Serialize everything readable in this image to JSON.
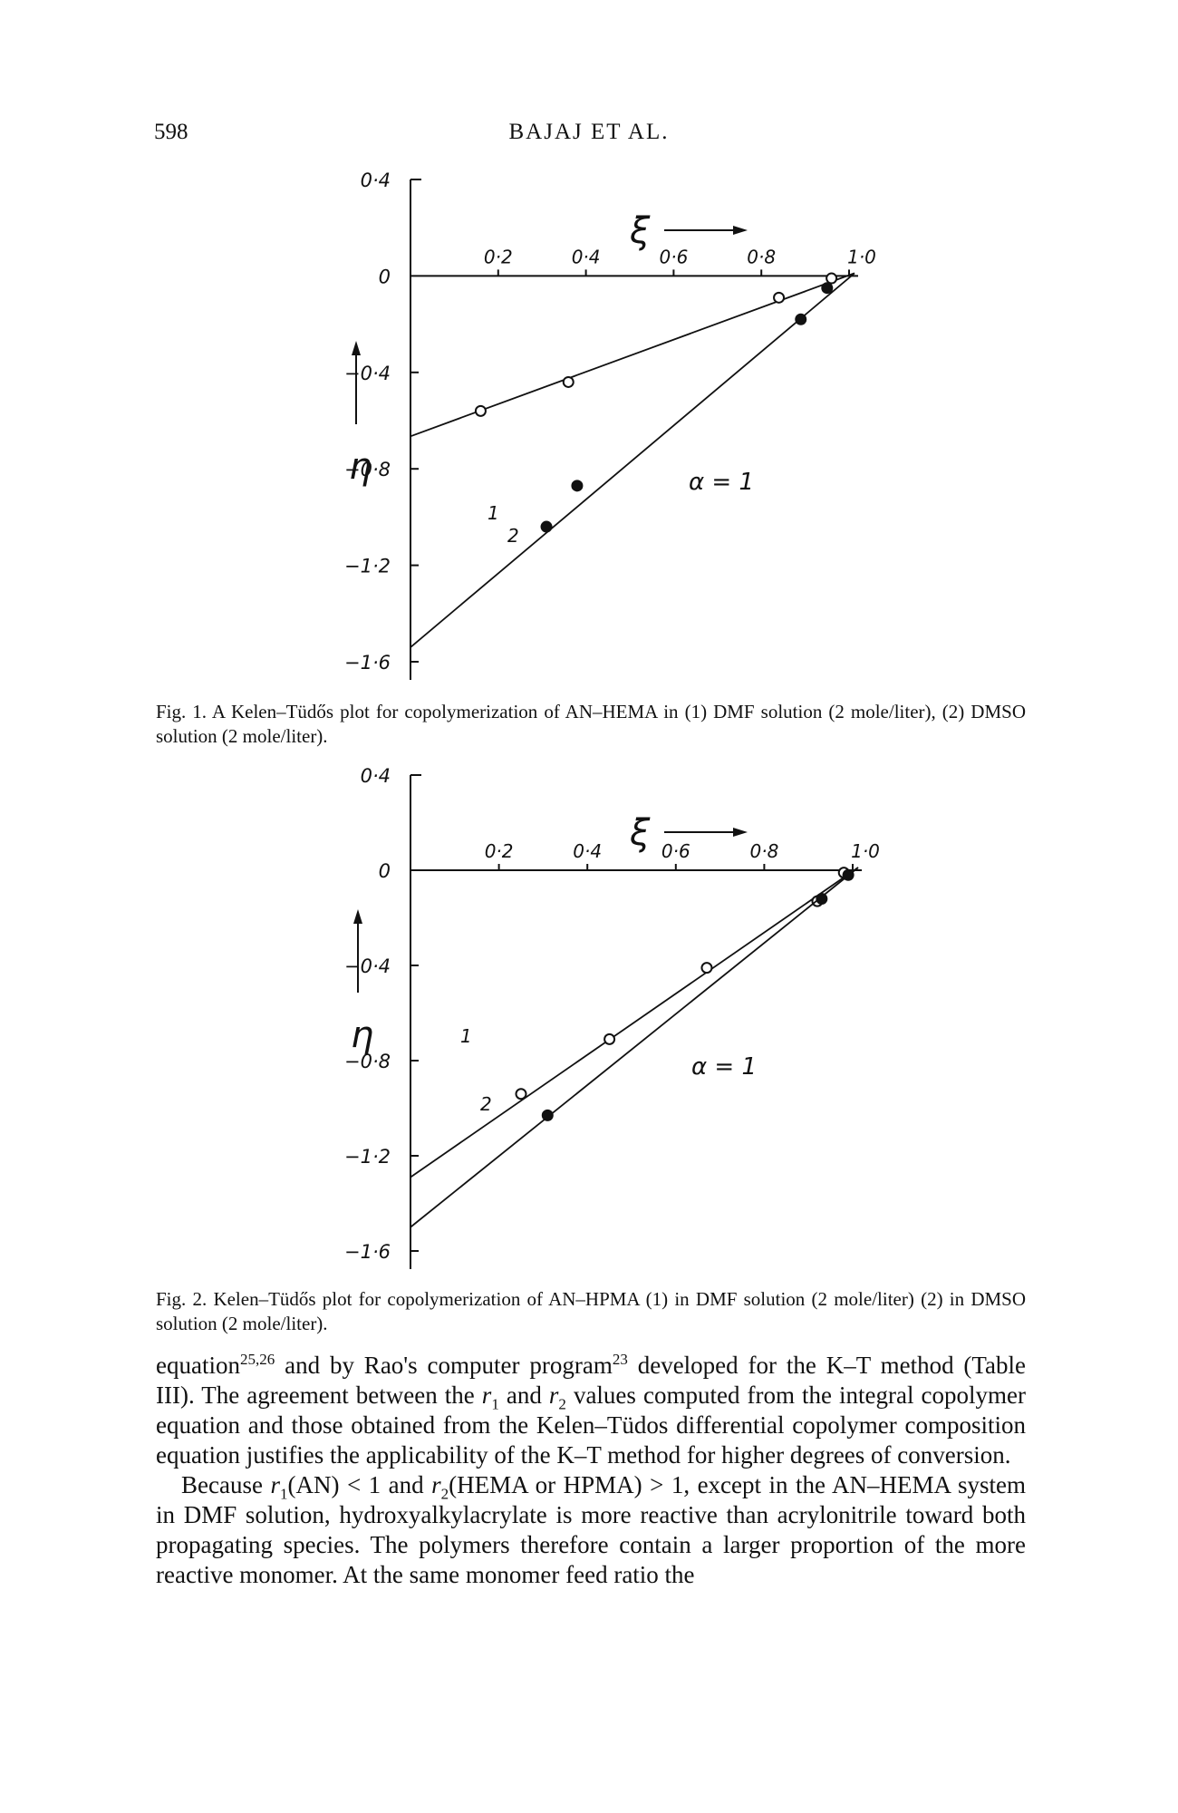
{
  "header": {
    "page_number": "598",
    "running_head": "BAJAJ ET AL."
  },
  "figures": [
    {
      "caption": "Fig. 1. A Kelen–Tüdős plot for copolymerization of AN–HEMA in (1) DMF solution (2 mole/liter), (2) DMSO solution (2 mole/liter).",
      "xlabel": "ξ",
      "ylabel": "η",
      "annotation": "α = 1"
    },
    {
      "caption": "Fig. 2. Kelen–Tüdős plot for copolymerization of AN–HPMA (1) in DMF solution (2 mole/liter) (2) in DMSO solution (2 mole/liter).",
      "xlabel": "ξ",
      "ylabel": "η",
      "annotation": "α = 1"
    }
  ],
  "chart_data": [
    {
      "type": "scatter",
      "title": "",
      "xlabel": "ξ",
      "ylabel": "η",
      "xlim": [
        0,
        1.0
      ],
      "ylim": [
        -1.6,
        0.4
      ],
      "x_ticks": [
        0.2,
        0.4,
        0.6,
        0.8,
        1.0
      ],
      "y_ticks": [
        0.4,
        0,
        -0.4,
        -0.8,
        -1.2,
        -1.6
      ],
      "x_tick_labels": [
        "0·2",
        "0·4",
        "0·6",
        "0·8",
        "1·0"
      ],
      "y_tick_labels": [
        "0·4",
        "0",
        "−0·4",
        "−0·8",
        "−1·2",
        "−1·6"
      ],
      "annotation": "α = 1",
      "series": [
        {
          "name": "1",
          "marker": "open",
          "points": [
            [
              0.16,
              -0.56
            ],
            [
              0.36,
              -0.44
            ],
            [
              0.84,
              -0.09
            ],
            [
              0.96,
              -0.01
            ]
          ],
          "fit": [
            [
              0,
              -0.665
            ],
            [
              1.0,
              0
            ]
          ]
        },
        {
          "name": "2",
          "marker": "filled",
          "points": [
            [
              0.31,
              -1.04
            ],
            [
              0.38,
              -0.87
            ],
            [
              0.89,
              -0.18
            ],
            [
              0.95,
              -0.05
            ]
          ],
          "fit": [
            [
              0,
              -1.54
            ],
            [
              1.0,
              0
            ]
          ]
        }
      ]
    },
    {
      "type": "scatter",
      "title": "",
      "xlabel": "ξ",
      "ylabel": "η",
      "xlim": [
        0,
        1.0
      ],
      "ylim": [
        -1.6,
        0.4
      ],
      "x_ticks": [
        0.2,
        0.4,
        0.6,
        0.8,
        1.0
      ],
      "y_ticks": [
        0.4,
        0,
        -0.4,
        -0.8,
        -1.2,
        -1.6
      ],
      "x_tick_labels": [
        "0·2",
        "0·4",
        "0·6",
        "0·8",
        "1·0"
      ],
      "y_tick_labels": [
        "0·4",
        "0",
        "−0·4",
        "−0·8",
        "−1·2",
        "−1·6"
      ],
      "annotation": "α = 1",
      "series": [
        {
          "name": "1",
          "marker": "open",
          "points": [
            [
              0.25,
              -0.94
            ],
            [
              0.45,
              -0.71
            ],
            [
              0.67,
              -0.41
            ],
            [
              0.92,
              -0.13
            ],
            [
              0.98,
              -0.01
            ]
          ],
          "fit": [
            [
              0,
              -1.29
            ],
            [
              1.0,
              0
            ]
          ]
        },
        {
          "name": "2",
          "marker": "filled",
          "points": [
            [
              0.31,
              -1.03
            ],
            [
              0.93,
              -0.12
            ],
            [
              0.99,
              -0.02
            ]
          ],
          "fit": [
            [
              0,
              -1.5
            ],
            [
              1.0,
              0
            ]
          ]
        }
      ]
    }
  ],
  "body": {
    "p1_a": "equation",
    "p1_sup1": "25,26",
    "p1_b": " and by Rao's computer program",
    "p1_sup2": "23",
    "p1_c": " developed for the K–T method (Table III). The agreement between the ",
    "p1_r": "r",
    "p1_sub1": "1",
    "p1_d": " and ",
    "p1_sub2": "2",
    "p1_e": " values computed from the integral copolymer equation and those obtained from the Kelen–Tüdos differential copolymer composition equation justifies the applicability of the K–T method for higher degrees of conversion.",
    "p2_a": "Because ",
    "p2_r": "r",
    "p2_sub1": "1",
    "p2_b": "(AN) < 1 and ",
    "p2_sub2": "2",
    "p2_c": "(HEMA or HPMA) > 1, except in the AN–HEMA system in DMF solution, hydroxyalkylacrylate is more reactive than acrylonitrile toward both propagating species. The polymers therefore contain a larger proportion of the more reactive monomer. At the same monomer feed ratio the"
  }
}
